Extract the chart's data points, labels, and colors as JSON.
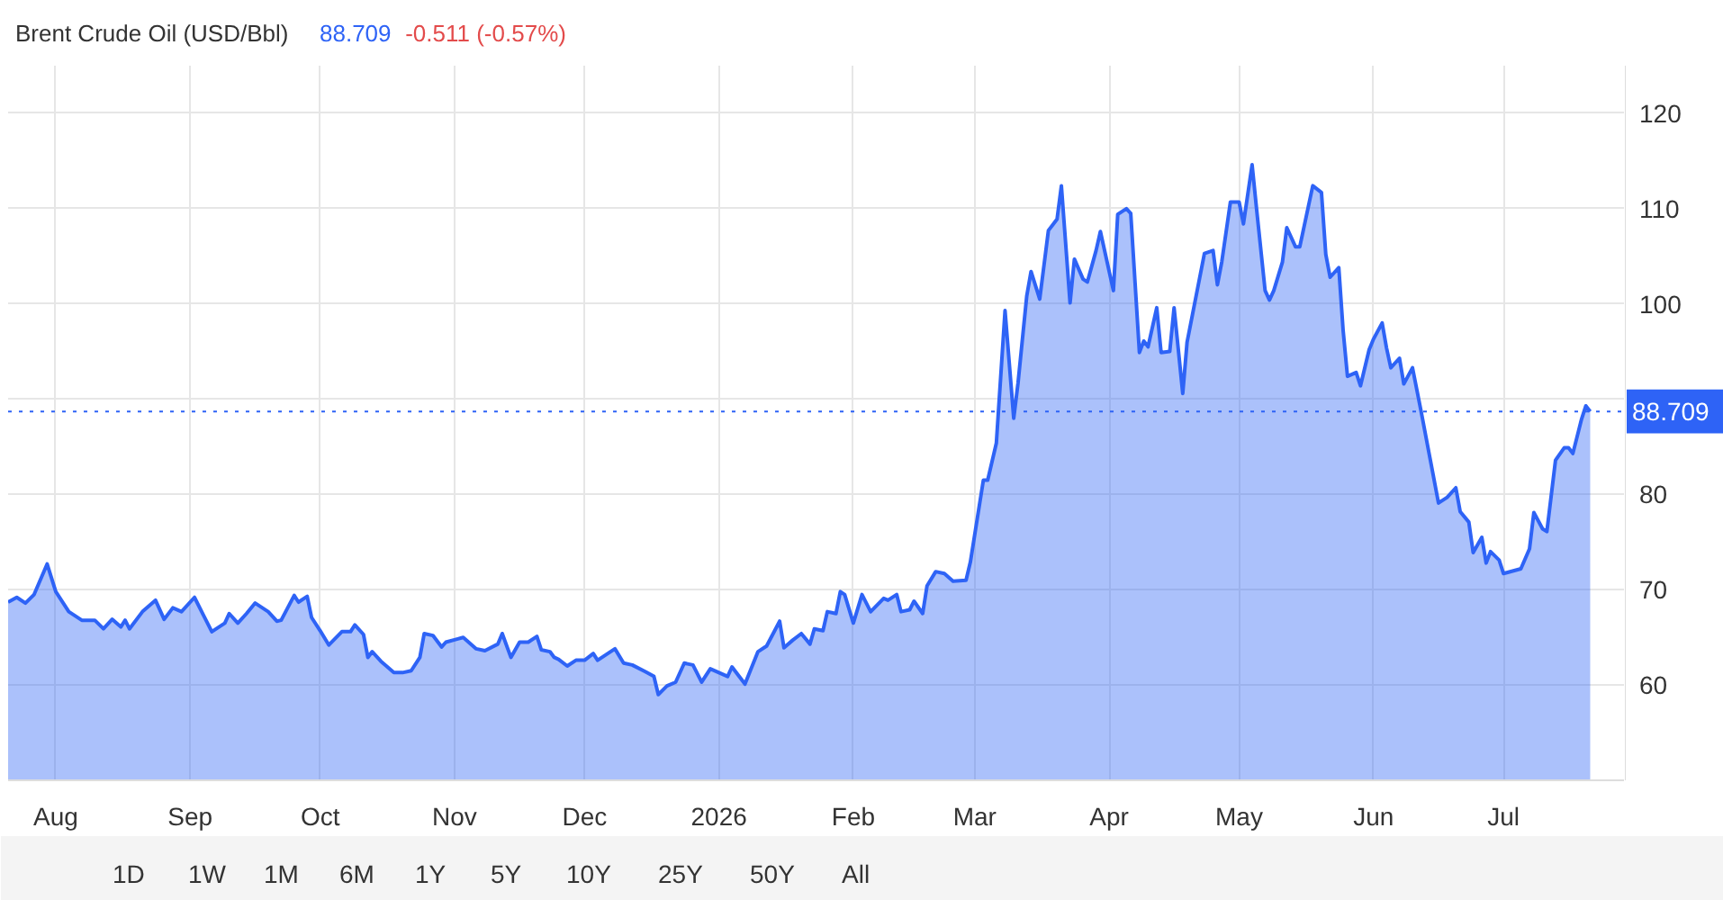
{
  "chart_data": {
    "type": "area",
    "title": "Brent Crude Oil (USD/Bbl)",
    "annotations": [
      "88.709",
      "-0.511 (-0.57%)",
      "1D",
      "1W",
      "1M",
      "6M",
      "1Y",
      "5Y",
      "10Y",
      "25Y",
      "50Y",
      "All"
    ],
    "x": [
      "2025-07-21",
      "2025-07-23",
      "2025-07-25",
      "2025-07-27",
      "2025-07-30",
      "2025-08-01",
      "2025-08-04",
      "2025-08-07",
      "2025-08-10",
      "2025-08-12",
      "2025-08-14",
      "2025-08-16",
      "2025-08-17",
      "2025-08-18",
      "2025-08-21",
      "2025-08-24",
      "2025-08-26",
      "2025-08-28",
      "2025-08-30",
      "2025-09-02",
      "2025-09-04",
      "2025-09-06",
      "2025-09-09",
      "2025-09-10",
      "2025-09-12",
      "2025-09-14",
      "2025-09-16",
      "2025-09-19",
      "2025-09-21",
      "2025-09-22",
      "2025-09-25",
      "2025-09-26",
      "2025-09-28",
      "2025-09-29",
      "2025-10-01",
      "2025-10-03",
      "2025-10-06",
      "2025-10-08",
      "2025-10-09",
      "2025-10-11",
      "2025-10-12",
      "2025-10-13",
      "2025-10-15",
      "2025-10-18",
      "2025-10-20",
      "2025-10-22",
      "2025-10-24",
      "2025-10-25",
      "2025-10-27",
      "2025-10-29",
      "2025-10-30",
      "2025-11-03",
      "2025-11-06",
      "2025-11-08",
      "2025-11-11",
      "2025-11-12",
      "2025-11-14",
      "2025-11-16",
      "2025-11-18",
      "2025-11-20",
      "2025-11-21",
      "2025-11-23",
      "2025-11-24",
      "2025-11-25",
      "2025-11-27",
      "2025-11-29",
      "2025-12-01",
      "2025-12-03",
      "2025-12-04",
      "2025-12-08",
      "2025-12-10",
      "2025-12-12",
      "2025-12-15",
      "2025-12-17",
      "2025-12-18",
      "2025-12-20",
      "2025-12-22",
      "2025-12-24",
      "2025-12-26",
      "2025-12-28",
      "2025-12-30",
      "2026-01-03",
      "2026-01-04",
      "2026-01-07",
      "2026-01-10",
      "2026-01-12",
      "2026-01-15",
      "2026-01-16",
      "2026-01-18",
      "2026-01-20",
      "2026-01-22",
      "2026-01-23",
      "2026-01-25",
      "2026-01-26",
      "2026-01-28",
      "2026-01-29",
      "2026-01-30",
      "2026-02-01",
      "2026-02-03",
      "2026-02-05",
      "2026-02-08",
      "2026-02-09",
      "2026-02-11",
      "2026-02-12",
      "2026-02-14",
      "2026-02-15",
      "2026-02-17",
      "2026-02-18",
      "2026-02-20",
      "2026-02-22",
      "2026-02-24",
      "2026-02-27",
      "2026-02-28",
      "2026-03-03",
      "2026-03-04",
      "2026-03-06",
      "2026-03-08",
      "2026-03-10",
      "2026-03-11",
      "2026-03-13",
      "2026-03-14",
      "2026-03-16",
      "2026-03-18",
      "2026-03-20",
      "2026-03-21",
      "2026-03-23",
      "2026-03-24",
      "2026-03-26",
      "2026-03-27",
      "2026-03-29",
      "2026-03-30",
      "2026-04-02",
      "2026-04-03",
      "2026-04-05",
      "2026-04-06",
      "2026-04-08",
      "2026-04-09",
      "2026-04-10",
      "2026-04-12",
      "2026-04-13",
      "2026-04-15",
      "2026-04-16",
      "2026-04-18",
      "2026-04-19",
      "2026-04-23",
      "2026-04-25",
      "2026-04-26",
      "2026-04-27",
      "2026-04-29",
      "2026-05-01",
      "2026-05-02",
      "2026-05-04",
      "2026-05-05",
      "2026-05-07",
      "2026-05-08",
      "2026-05-09",
      "2026-05-11",
      "2026-05-12",
      "2026-05-14",
      "2026-05-15",
      "2026-05-18",
      "2026-05-20",
      "2026-05-21",
      "2026-05-22",
      "2026-05-24",
      "2026-05-25",
      "2026-05-26",
      "2026-05-28",
      "2026-05-29",
      "2026-05-31",
      "2026-06-01",
      "2026-06-03",
      "2026-06-04",
      "2026-06-05",
      "2026-06-07",
      "2026-06-08",
      "2026-06-10",
      "2026-06-12",
      "2026-06-16",
      "2026-06-18",
      "2026-06-20",
      "2026-06-21",
      "2026-06-23",
      "2026-06-24",
      "2026-06-26",
      "2026-06-27",
      "2026-06-28",
      "2026-06-30",
      "2026-07-01",
      "2026-07-05",
      "2026-07-07",
      "2026-07-08",
      "2026-07-10",
      "2026-07-11",
      "2026-07-13",
      "2026-07-15",
      "2026-07-16",
      "2026-07-17",
      "2026-07-19",
      "2026-07-20",
      "2026-07-21"
    ],
    "series": [
      {
        "color": "#2e63f6",
        "values": [
          68.7,
          69.2,
          68.6,
          69.5,
          72.7,
          69.8,
          67.7,
          66.8,
          66.8,
          65.9,
          66.9,
          66.1,
          66.8,
          65.9,
          67.7,
          68.9,
          66.9,
          68.1,
          67.7,
          69.2,
          67.4,
          65.6,
          66.5,
          67.5,
          66.5,
          67.5,
          68.6,
          67.7,
          66.7,
          66.8,
          69.4,
          68.7,
          69.3,
          67.1,
          65.7,
          64.2,
          65.6,
          65.6,
          66.3,
          65.3,
          62.9,
          63.5,
          62.5,
          61.3,
          61.3,
          61.5,
          62.9,
          65.4,
          65.2,
          64.0,
          64.5,
          65.0,
          63.8,
          63.6,
          64.3,
          65.4,
          62.9,
          64.5,
          64.5,
          65.1,
          63.7,
          63.5,
          62.9,
          62.7,
          62.0,
          62.6,
          62.6,
          63.3,
          62.6,
          63.8,
          62.3,
          62.1,
          61.4,
          60.9,
          59.0,
          59.9,
          60.3,
          62.3,
          62.1,
          60.3,
          61.7,
          60.9,
          61.9,
          60.1,
          63.5,
          64.1,
          66.7,
          63.9,
          64.7,
          65.4,
          64.3,
          65.9,
          65.7,
          67.7,
          67.5,
          69.8,
          69.5,
          66.5,
          69.5,
          67.7,
          69.1,
          68.9,
          69.5,
          67.7,
          67.9,
          68.8,
          67.5,
          70.4,
          71.9,
          71.7,
          70.9,
          71.0,
          72.9,
          81.5,
          81.5,
          85.4,
          99.3,
          88.0,
          91.7,
          100.8,
          103.4,
          100.5,
          107.7,
          108.9,
          112.4,
          100.1,
          104.7,
          102.6,
          102.3,
          105.6,
          107.6,
          101.4,
          109.4,
          110.0,
          109.5,
          94.9,
          96.1,
          95.5,
          99.6,
          94.9,
          95.0,
          99.6,
          90.6,
          96.0,
          105.3,
          105.6,
          102.0,
          104.4,
          110.7,
          110.7,
          108.4,
          114.6,
          110.1,
          101.4,
          100.4,
          101.4,
          104.4,
          108.0,
          106.0,
          106.0,
          112.4,
          111.7,
          105.2,
          102.8,
          103.8,
          97.2,
          92.4,
          92.8,
          91.4,
          95.2,
          96.3,
          98.0,
          95.4,
          93.3,
          94.3,
          91.6,
          93.3,
          88.7,
          79.1,
          79.7,
          80.7,
          78.2,
          77.1,
          73.9,
          75.5,
          72.8,
          74.0,
          73.1,
          71.7,
          72.2,
          74.3,
          78.1,
          76.4,
          76.1,
          83.6,
          84.9,
          84.9,
          84.3,
          87.9,
          89.3,
          88.709
        ]
      }
    ],
    "xlim": [
      "2025-07-21",
      "2026-07-29"
    ],
    "xticks": [
      {
        "value": "2025-08-01",
        "label": "Aug"
      },
      {
        "value": "2025-09-01",
        "label": "Sep"
      },
      {
        "value": "2025-10-01",
        "label": "Oct"
      },
      {
        "value": "2025-11-01",
        "label": "Nov"
      },
      {
        "value": "2025-12-01",
        "label": "Dec"
      },
      {
        "value": "2026-01-01",
        "label": "2026"
      },
      {
        "value": "2026-02-01",
        "label": "Feb"
      },
      {
        "value": "2026-03-01",
        "label": "Mar"
      },
      {
        "value": "2026-04-01",
        "label": "Apr"
      },
      {
        "value": "2026-05-01",
        "label": "May"
      },
      {
        "value": "2026-06-01",
        "label": "Jun"
      },
      {
        "value": "2026-07-01",
        "label": "Jul"
      }
    ],
    "ylim": [
      50,
      125
    ],
    "yticks": [
      60,
      70,
      80,
      {
        "value": 90,
        "label": null
      },
      100,
      110,
      120
    ],
    "ref_lines": [
      {
        "axis": "y",
        "value": 88.709,
        "label": "88.709",
        "color": "#2e63f6",
        "line_style": "dotted"
      }
    ],
    "grid": true
  }
}
